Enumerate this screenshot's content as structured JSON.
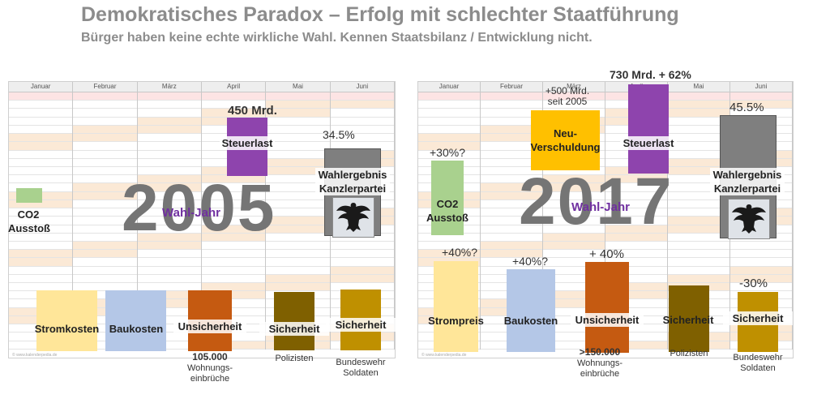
{
  "title": "Demokratisches Paradox – Erfolg mit schlechter Staatführung",
  "subtitle": "Bürger haben keine echte wirkliche Wahl. Kennen Staatsbilanz / Entwicklung nicht.",
  "colors": {
    "purple": "#8e44ad",
    "green": "#a9d18e",
    "gray": "#7f7f7f",
    "yellow": "#ffe699",
    "blue": "#b4c7e7",
    "orange": "#c55a11",
    "brown": "#7f6000",
    "gold": "#bf9000",
    "amber": "#ffc000"
  },
  "calendar": {
    "months": [
      "Januar",
      "Februar",
      "März",
      "April",
      "Mai",
      "Juni"
    ],
    "footer": "© www.kalenderpedia.de"
  },
  "left": {
    "year": "2005",
    "wahljahr": "Wahl-Jahr",
    "steuerlast_value": "450 Mrd.",
    "steuerlast_label": "Steuerlast",
    "wahl_pct": "34.5%",
    "wahl_label_1": "Wahlergebnis",
    "wahl_label_2": "Kanzlerpartei",
    "co2_label_1": "CO2",
    "co2_label_2": "Ausstoß",
    "strom_label": "Stromkosten",
    "bau_label": "Baukosten",
    "unsicherheit_label": "Unsicherheit",
    "unsicherheit_value": "105.000",
    "unsicherheit_sub_1": "Wohnungs-",
    "unsicherheit_sub_2": "einbrüche",
    "sicherheit1_label": "Sicherheit",
    "polizisten": "Polizisten",
    "sicherheit2_label": "Sicherheit",
    "bundeswehr_1": "Bundeswehr",
    "bundeswehr_2": "Soldaten"
  },
  "right": {
    "year": "2017",
    "wahljahr": "Wahl-Jahr",
    "steuerlast_value": "730 Mrd. + 62%",
    "steuerlast_label": "Steuerlast",
    "neuverschuldung_value_1": "+500 Mrd.",
    "neuverschuldung_value_2": "seit 2005",
    "neuverschuldung_label_1": "Neu-",
    "neuverschuldung_label_2": "Verschuldung",
    "wahl_pct": "45.5%",
    "wahl_label_1": "Wahlergebnis",
    "wahl_label_2": "Kanzlerpartei",
    "co2_pct": "+30%?",
    "co2_label_1": "CO2",
    "co2_label_2": "Ausstoß",
    "strom_pct": "+40%?",
    "strom_label": "Strompreis",
    "bau_pct": "+40%?",
    "bau_label": "Baukosten",
    "unsicherheit_pct": "+ 40%",
    "unsicherheit_label": "Unsicherheit",
    "unsicherheit_value": ">150.000",
    "unsicherheit_sub_1": "Wohnungs-",
    "unsicherheit_sub_2": "einbrüche",
    "sicherheit1_label": "Sicherheit",
    "polizisten": "Polizisten",
    "sicherheit2_pct": "-30%",
    "sicherheit2_label": "Sicherheit",
    "bundeswehr_1": "Bundeswehr",
    "bundeswehr_2": "Soldaten"
  }
}
